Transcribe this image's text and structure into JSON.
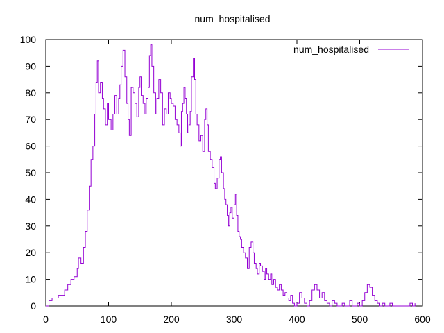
{
  "chart_data": {
    "type": "line",
    "title": "num_hospitalised",
    "xlabel": "",
    "ylabel": "",
    "xlim": [
      0,
      600
    ],
    "ylim": [
      0,
      100
    ],
    "xticks": [
      0,
      100,
      200,
      300,
      400,
      500,
      600
    ],
    "yticks": [
      0,
      10,
      20,
      30,
      40,
      50,
      60,
      70,
      80,
      90,
      100
    ],
    "grid": false,
    "legend_position": "top-right",
    "series": [
      {
        "name": "num_hospitalised",
        "color": "#9400d3",
        "points": [
          [
            0,
            0
          ],
          [
            5,
            2
          ],
          [
            10,
            3
          ],
          [
            15,
            3
          ],
          [
            20,
            4
          ],
          [
            25,
            4
          ],
          [
            30,
            6
          ],
          [
            35,
            8
          ],
          [
            40,
            10
          ],
          [
            45,
            11
          ],
          [
            50,
            14
          ],
          [
            52,
            18
          ],
          [
            56,
            16
          ],
          [
            60,
            22
          ],
          [
            63,
            28
          ],
          [
            66,
            36
          ],
          [
            70,
            45
          ],
          [
            72,
            55
          ],
          [
            75,
            60
          ],
          [
            78,
            72
          ],
          [
            80,
            84
          ],
          [
            82,
            92
          ],
          [
            84,
            80
          ],
          [
            87,
            84
          ],
          [
            90,
            78
          ],
          [
            92,
            74
          ],
          [
            95,
            68
          ],
          [
            98,
            76
          ],
          [
            100,
            70
          ],
          [
            104,
            66
          ],
          [
            107,
            72
          ],
          [
            110,
            79
          ],
          [
            113,
            72
          ],
          [
            116,
            78
          ],
          [
            118,
            83
          ],
          [
            120,
            90
          ],
          [
            123,
            96
          ],
          [
            126,
            86
          ],
          [
            129,
            76
          ],
          [
            131,
            70
          ],
          [
            133,
            64
          ],
          [
            136,
            82
          ],
          [
            139,
            80
          ],
          [
            142,
            76
          ],
          [
            145,
            71
          ],
          [
            148,
            82
          ],
          [
            150,
            86
          ],
          [
            152,
            79
          ],
          [
            155,
            76
          ],
          [
            158,
            72
          ],
          [
            160,
            78
          ],
          [
            163,
            82
          ],
          [
            165,
            94
          ],
          [
            167,
            98
          ],
          [
            169,
            90
          ],
          [
            172,
            80
          ],
          [
            175,
            72
          ],
          [
            177,
            78
          ],
          [
            180,
            85
          ],
          [
            183,
            80
          ],
          [
            186,
            68
          ],
          [
            189,
            74
          ],
          [
            192,
            72
          ],
          [
            195,
            80
          ],
          [
            198,
            78
          ],
          [
            200,
            76
          ],
          [
            203,
            75
          ],
          [
            206,
            70
          ],
          [
            209,
            68
          ],
          [
            212,
            65
          ],
          [
            214,
            60
          ],
          [
            216,
            73
          ],
          [
            218,
            76
          ],
          [
            220,
            82
          ],
          [
            222,
            78
          ],
          [
            224,
            72
          ],
          [
            226,
            65
          ],
          [
            228,
            68
          ],
          [
            230,
            73
          ],
          [
            232,
            86
          ],
          [
            235,
            93
          ],
          [
            237,
            85
          ],
          [
            239,
            72
          ],
          [
            241,
            68
          ],
          [
            244,
            62
          ],
          [
            247,
            64
          ],
          [
            250,
            58
          ],
          [
            253,
            70
          ],
          [
            255,
            74
          ],
          [
            257,
            68
          ],
          [
            259,
            58
          ],
          [
            262,
            55
          ],
          [
            265,
            52
          ],
          [
            268,
            46
          ],
          [
            270,
            44
          ],
          [
            273,
            48
          ],
          [
            276,
            55
          ],
          [
            278,
            56
          ],
          [
            280,
            50
          ],
          [
            283,
            44
          ],
          [
            285,
            40
          ],
          [
            287,
            38
          ],
          [
            289,
            34
          ],
          [
            291,
            30
          ],
          [
            293,
            35
          ],
          [
            295,
            37
          ],
          [
            297,
            33
          ],
          [
            300,
            38
          ],
          [
            302,
            42
          ],
          [
            304,
            34
          ],
          [
            306,
            28
          ],
          [
            308,
            26
          ],
          [
            310,
            25
          ],
          [
            312,
            22
          ],
          [
            315,
            20
          ],
          [
            318,
            18
          ],
          [
            321,
            14
          ],
          [
            324,
            22
          ],
          [
            327,
            24
          ],
          [
            330,
            20
          ],
          [
            332,
            16
          ],
          [
            335,
            14
          ],
          [
            337,
            12
          ],
          [
            340,
            16
          ],
          [
            342,
            15
          ],
          [
            345,
            13
          ],
          [
            348,
            10
          ],
          [
            350,
            14
          ],
          [
            352,
            12
          ],
          [
            355,
            10
          ],
          [
            358,
            12
          ],
          [
            360,
            8
          ],
          [
            363,
            10
          ],
          [
            366,
            7
          ],
          [
            369,
            6
          ],
          [
            372,
            8
          ],
          [
            375,
            6
          ],
          [
            378,
            4
          ],
          [
            381,
            5
          ],
          [
            384,
            3
          ],
          [
            387,
            2
          ],
          [
            390,
            4
          ],
          [
            393,
            1
          ],
          [
            396,
            0
          ],
          [
            400,
            1
          ],
          [
            404,
            5
          ],
          [
            408,
            3
          ],
          [
            412,
            1
          ],
          [
            416,
            0
          ],
          [
            420,
            2
          ],
          [
            424,
            6
          ],
          [
            428,
            8
          ],
          [
            432,
            6
          ],
          [
            436,
            3
          ],
          [
            440,
            5
          ],
          [
            444,
            2
          ],
          [
            448,
            1
          ],
          [
            452,
            0
          ],
          [
            456,
            2
          ],
          [
            460,
            1
          ],
          [
            464,
            0
          ],
          [
            468,
            0
          ],
          [
            472,
            1
          ],
          [
            476,
            0
          ],
          [
            480,
            0
          ],
          [
            484,
            2
          ],
          [
            488,
            0
          ],
          [
            492,
            0
          ],
          [
            496,
            1
          ],
          [
            500,
            0
          ],
          [
            504,
            2
          ],
          [
            508,
            5
          ],
          [
            512,
            8
          ],
          [
            516,
            7
          ],
          [
            520,
            4
          ],
          [
            524,
            2
          ],
          [
            528,
            1
          ],
          [
            532,
            0
          ],
          [
            536,
            1
          ],
          [
            540,
            0
          ],
          [
            544,
            0
          ],
          [
            548,
            1
          ],
          [
            552,
            0
          ],
          [
            556,
            0
          ],
          [
            560,
            0
          ],
          [
            564,
            0
          ],
          [
            568,
            0
          ],
          [
            572,
            0
          ],
          [
            576,
            0
          ],
          [
            580,
            1
          ],
          [
            584,
            0
          ],
          [
            588,
            1
          ]
        ]
      }
    ]
  }
}
